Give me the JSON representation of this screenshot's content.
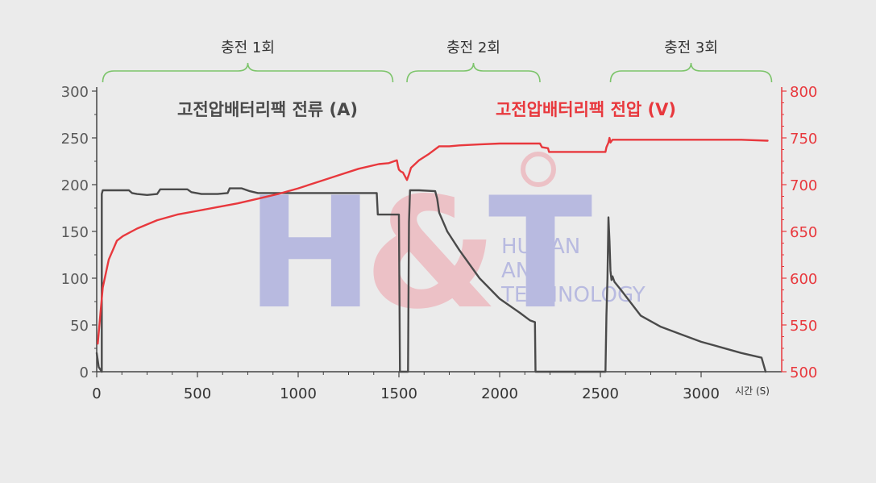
{
  "chart_data": {
    "type": "line",
    "title": "",
    "xlabel": "시간 (S)",
    "xlim": [
      0,
      3400
    ],
    "x_ticks": [
      0,
      500,
      1000,
      1500,
      2000,
      2500,
      3000
    ],
    "grid": false,
    "left_axis": {
      "label": "",
      "lim": [
        0,
        300
      ],
      "ticks": [
        0,
        50,
        100,
        150,
        200,
        250,
        300
      ],
      "color": "#595959"
    },
    "right_axis": {
      "label": "",
      "lim": [
        500,
        800
      ],
      "ticks": [
        500,
        550,
        600,
        650,
        700,
        750,
        800
      ],
      "color": "#e8383d"
    },
    "series": [
      {
        "name": "고전압배터리팩 전류 (A)",
        "axis": "left",
        "color": "#4a4a4a",
        "points": [
          [
            0,
            20
          ],
          [
            10,
            5
          ],
          [
            25,
            0
          ],
          [
            25,
            190
          ],
          [
            30,
            194
          ],
          [
            60,
            194
          ],
          [
            160,
            194
          ],
          [
            175,
            191
          ],
          [
            200,
            190
          ],
          [
            250,
            189
          ],
          [
            300,
            190
          ],
          [
            315,
            195
          ],
          [
            400,
            195
          ],
          [
            450,
            195
          ],
          [
            470,
            192
          ],
          [
            520,
            190
          ],
          [
            600,
            190
          ],
          [
            650,
            191
          ],
          [
            660,
            196
          ],
          [
            720,
            196
          ],
          [
            760,
            193
          ],
          [
            800,
            191
          ],
          [
            1000,
            191
          ],
          [
            1390,
            191
          ],
          [
            1395,
            168
          ],
          [
            1500,
            168
          ],
          [
            1505,
            0
          ],
          [
            1545,
            0
          ],
          [
            1550,
            160
          ],
          [
            1555,
            194
          ],
          [
            1600,
            194
          ],
          [
            1680,
            193
          ],
          [
            1690,
            185
          ],
          [
            1700,
            170
          ],
          [
            1740,
            150
          ],
          [
            1800,
            130
          ],
          [
            1900,
            100
          ],
          [
            2000,
            78
          ],
          [
            2100,
            63
          ],
          [
            2150,
            55
          ],
          [
            2175,
            53
          ],
          [
            2178,
            0
          ],
          [
            2525,
            0
          ],
          [
            2530,
            60
          ],
          [
            2535,
            100
          ],
          [
            2540,
            165
          ],
          [
            2545,
            140
          ],
          [
            2550,
            108
          ],
          [
            2555,
            98
          ],
          [
            2560,
            102
          ],
          [
            2570,
            96
          ],
          [
            2600,
            88
          ],
          [
            2700,
            60
          ],
          [
            2800,
            48
          ],
          [
            2900,
            40
          ],
          [
            3000,
            32
          ],
          [
            3100,
            26
          ],
          [
            3200,
            20
          ],
          [
            3300,
            15
          ],
          [
            3320,
            0
          ]
        ]
      },
      {
        "name": "고전압배터리팩 전압 (V)",
        "axis": "right",
        "color": "#e8383d",
        "points": [
          [
            5,
            530
          ],
          [
            30,
            590
          ],
          [
            60,
            620
          ],
          [
            100,
            640
          ],
          [
            130,
            645
          ],
          [
            200,
            653
          ],
          [
            300,
            662
          ],
          [
            400,
            668
          ],
          [
            500,
            672
          ],
          [
            600,
            676
          ],
          [
            700,
            680
          ],
          [
            800,
            685
          ],
          [
            900,
            690
          ],
          [
            1000,
            696
          ],
          [
            1100,
            703
          ],
          [
            1200,
            710
          ],
          [
            1300,
            717
          ],
          [
            1400,
            722
          ],
          [
            1450,
            723
          ],
          [
            1490,
            726
          ],
          [
            1495,
            720
          ],
          [
            1500,
            716
          ],
          [
            1510,
            714
          ],
          [
            1520,
            713
          ],
          [
            1540,
            705
          ],
          [
            1550,
            711
          ],
          [
            1560,
            718
          ],
          [
            1600,
            726
          ],
          [
            1650,
            733
          ],
          [
            1700,
            741
          ],
          [
            1750,
            741
          ],
          [
            1800,
            742
          ],
          [
            1900,
            743
          ],
          [
            2000,
            744
          ],
          [
            2100,
            744
          ],
          [
            2200,
            744
          ],
          [
            2210,
            740
          ],
          [
            2240,
            739
          ],
          [
            2245,
            735
          ],
          [
            2300,
            735
          ],
          [
            2400,
            735
          ],
          [
            2500,
            735
          ],
          [
            2525,
            735
          ],
          [
            2530,
            740
          ],
          [
            2540,
            745
          ],
          [
            2545,
            750
          ],
          [
            2550,
            745
          ],
          [
            2560,
            748
          ],
          [
            2700,
            748
          ],
          [
            2900,
            748
          ],
          [
            3000,
            748
          ],
          [
            3200,
            748
          ],
          [
            3330,
            747
          ]
        ]
      }
    ],
    "annotations": [
      {
        "text": "충전 1회",
        "x_start": 30,
        "x_end": 1470
      },
      {
        "text": "충전 2회",
        "x_start": 1540,
        "x_end": 2200
      },
      {
        "text": "충전 3회",
        "x_start": 2550,
        "x_end": 3350
      }
    ]
  },
  "watermark": {
    "logo_text": "H&T",
    "line1": "HUMAN",
    "line2": "AND",
    "line3": "TECHNOLOGY",
    "blue": "#7b80d4",
    "pink": "#ef8f9a"
  }
}
